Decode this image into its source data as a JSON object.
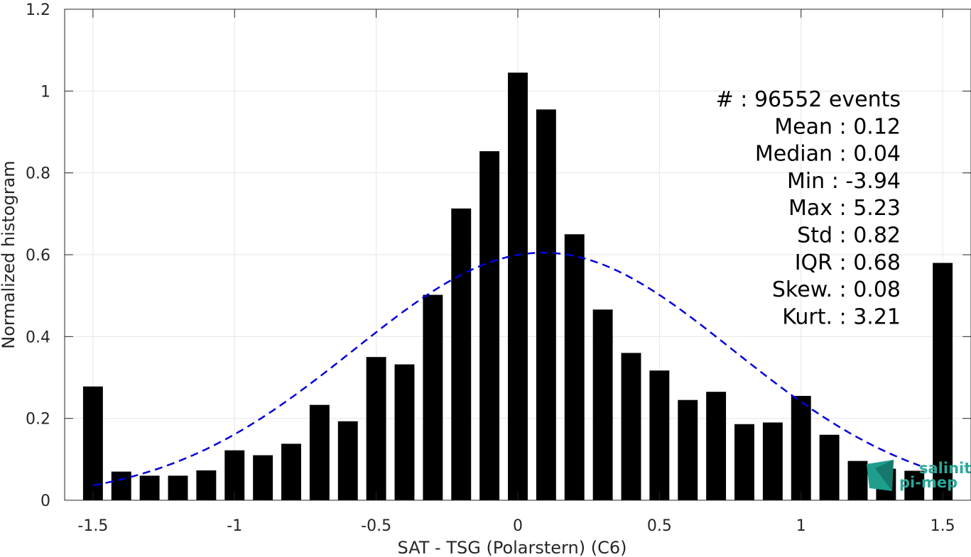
{
  "chart_data": {
    "type": "bar",
    "xlabel": "SAT - TSG (Polarstern) (C6)",
    "ylabel": "Normalized histogram",
    "xlim": [
      -1.6,
      1.6
    ],
    "ylim": [
      0,
      1.2
    ],
    "x_ticks": [
      "-1.5",
      "-1",
      "-0.5",
      "0",
      "0.5",
      "1",
      "1.5"
    ],
    "y_ticks": [
      "0",
      "0.2",
      "0.4",
      "0.6",
      "0.8",
      "1",
      "1.2"
    ],
    "grid": true,
    "bar_color": "#000000",
    "fit_color": "#0000dd",
    "bar_width": 0.07,
    "x": [
      -1.5,
      -1.4,
      -1.3,
      -1.2,
      -1.1,
      -1.0,
      -0.9,
      -0.8,
      -0.7,
      -0.6,
      -0.5,
      -0.4,
      -0.3,
      -0.2,
      -0.1,
      0.0,
      0.1,
      0.2,
      0.3,
      0.4,
      0.5,
      0.6,
      0.7,
      0.8,
      0.9,
      1.0,
      1.1,
      1.2,
      1.3,
      1.4,
      1.5
    ],
    "values": [
      0.278,
      0.07,
      0.06,
      0.06,
      0.073,
      0.122,
      0.11,
      0.138,
      0.233,
      0.193,
      0.35,
      0.332,
      0.502,
      0.713,
      0.853,
      1.045,
      0.955,
      0.65,
      0.466,
      0.36,
      0.317,
      0.245,
      0.265,
      0.186,
      0.19,
      0.255,
      0.16,
      0.096,
      0.077,
      0.072,
      0.58
    ],
    "fit": {
      "type": "normal",
      "peak": 0.605,
      "mean": 0.09,
      "std": 0.67,
      "x_range": [
        -1.5,
        1.42
      ]
    },
    "stats": [
      {
        "label": "#  : 96552 events"
      },
      {
        "label": "Mean : 0.12"
      },
      {
        "label": "Median : 0.04"
      },
      {
        "label": "Min : -3.94"
      },
      {
        "label": "Max : 5.23"
      },
      {
        "label": "Std : 0.82"
      },
      {
        "label": "IQR : 0.68"
      },
      {
        "label": "Skew. : 0.08"
      },
      {
        "label": "Kurt. : 3.21"
      }
    ]
  },
  "logo": {
    "line1": "salinity",
    "line2": "pi-mep"
  }
}
